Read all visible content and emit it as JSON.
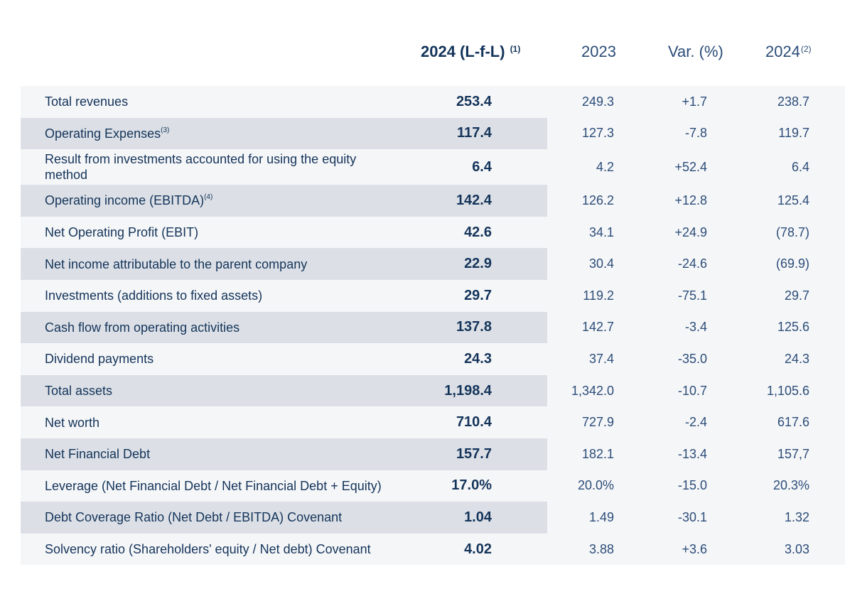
{
  "header": {
    "lfl_label": "2024 (L-f-L)",
    "lfl_note": "(1)",
    "y2023_label": "2023",
    "var_label": "Var. (%)",
    "y2024_label": "2024",
    "y2024_note": "(2)"
  },
  "rows": [
    {
      "label": "Total revenues",
      "note": "",
      "lfl": "253.4",
      "y2023": "249.3",
      "var": "+1.7",
      "y2024": "238.7"
    },
    {
      "label": "Operating Expenses",
      "note": "(3)",
      "lfl": "117.4",
      "y2023": "127.3",
      "var": "-7.8",
      "y2024": "119.7"
    },
    {
      "label": "Result from investments accounted for using the equity method",
      "note": "",
      "lfl": "6.4",
      "y2023": "4.2",
      "var": "+52.4",
      "y2024": "6.4"
    },
    {
      "label": "Operating income (EBITDA)",
      "note": "(4)",
      "lfl": "142.4",
      "y2023": "126.2",
      "var": "+12.8",
      "y2024": "125.4"
    },
    {
      "label": "Net Operating Profit (EBIT)",
      "note": "",
      "lfl": "42.6",
      "y2023": "34.1",
      "var": "+24.9",
      "y2024": "(78.7)"
    },
    {
      "label": "Net income attributable to the parent company",
      "note": "",
      "lfl": "22.9",
      "y2023": "30.4",
      "var": "-24.6",
      "y2024": "(69.9)"
    },
    {
      "label": "Investments (additions to fixed assets)",
      "note": "",
      "lfl": "29.7",
      "y2023": "119.2",
      "var": "-75.1",
      "y2024": "29.7"
    },
    {
      "label": "Cash flow from operating activities",
      "note": "",
      "lfl": "137.8",
      "y2023": "142.7",
      "var": "-3.4",
      "y2024": "125.6"
    },
    {
      "label": "Dividend payments",
      "note": "",
      "lfl": "24.3",
      "y2023": "37.4",
      "var": "-35.0",
      "y2024": "24.3"
    },
    {
      "label": "Total assets",
      "note": "",
      "lfl": "1,198.4",
      "y2023": "1,342.0",
      "var": "-10.7",
      "y2024": "1,105.6"
    },
    {
      "label": "Net worth",
      "note": "",
      "lfl": "710.4",
      "y2023": "727.9",
      "var": "-2.4",
      "y2024": "617.6"
    },
    {
      "label": "Net Financial Debt",
      "note": "",
      "lfl": "157.7",
      "y2023": "182.1",
      "var": "-13.4",
      "y2024": "157,7"
    },
    {
      "label": "Leverage (Net Financial Debt / Net Financial Debt + Equity)",
      "note": "",
      "lfl": "17.0%",
      "y2023": "20.0%",
      "var": "-15.0",
      "y2024": "20.3%"
    },
    {
      "label": "Debt Coverage Ratio (Net Debt / EBITDA) Covenant",
      "note": "",
      "lfl": "1.04",
      "y2023": "1.49",
      "var": "-30.1",
      "y2024": "1.32"
    },
    {
      "label": "Solvency ratio (Shareholders' equity / Net debt) Covenant",
      "note": "",
      "lfl": "4.02",
      "y2023": "3.88",
      "var": "+3.6",
      "y2024": "3.03"
    }
  ]
}
